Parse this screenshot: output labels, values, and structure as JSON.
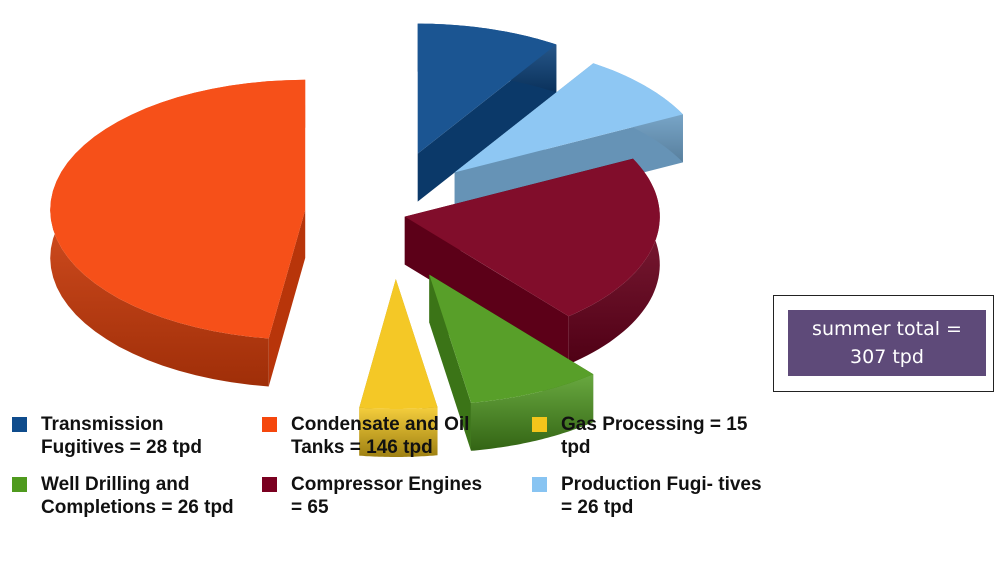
{
  "chart_data": {
    "type": "pie",
    "slices": [
      {
        "label": "Transmission Fugitives",
        "value": 28,
        "unit": "tpd",
        "color": "#0f4c8c"
      },
      {
        "label": "Production Fugitives",
        "value": 26,
        "unit": "tpd",
        "color": "#88c4f2"
      },
      {
        "label": "Compressor Engines",
        "value": 65,
        "unit": "tpd",
        "color": "#7a0020"
      },
      {
        "label": "Well Drilling and Completions",
        "value": 26,
        "unit": "tpd",
        "color": "#4f9a1e"
      },
      {
        "label": "Gas Processing",
        "value": 15,
        "unit": "tpd",
        "color": "#f3c51b"
      },
      {
        "label": "Condensate and Oil Tanks",
        "value": 146,
        "unit": "tpd",
        "color": "#f5470d"
      }
    ],
    "legend_placement": "bottom",
    "exploded": true
  },
  "total_box": {
    "line1": "summer total =",
    "line2": "307 tpd"
  },
  "legend": [
    {
      "name": "legend-item-transmission-fugitives",
      "text": "Transmission Fugitives = 28 tpd",
      "color": "#0f4c8c"
    },
    {
      "name": "legend-item-condensate-oil-tanks",
      "text": "Condensate and Oil Tanks = 146 tpd",
      "color": "#f5470d"
    },
    {
      "name": "legend-item-gas-processing",
      "text": "Gas Processing = 15 tpd",
      "color": "#f3c51b"
    },
    {
      "name": "legend-item-well-drilling",
      "text": "Well Drilling and Completions = 26 tpd",
      "color": "#4f9a1e"
    },
    {
      "name": "legend-item-compressor-engines",
      "text": "Compressor Engines = 65",
      "color": "#7a0020"
    },
    {
      "name": "legend-item-production-fugitives",
      "text": "Production Fugi- tives = 26 tpd",
      "color": "#88c4f2"
    }
  ]
}
